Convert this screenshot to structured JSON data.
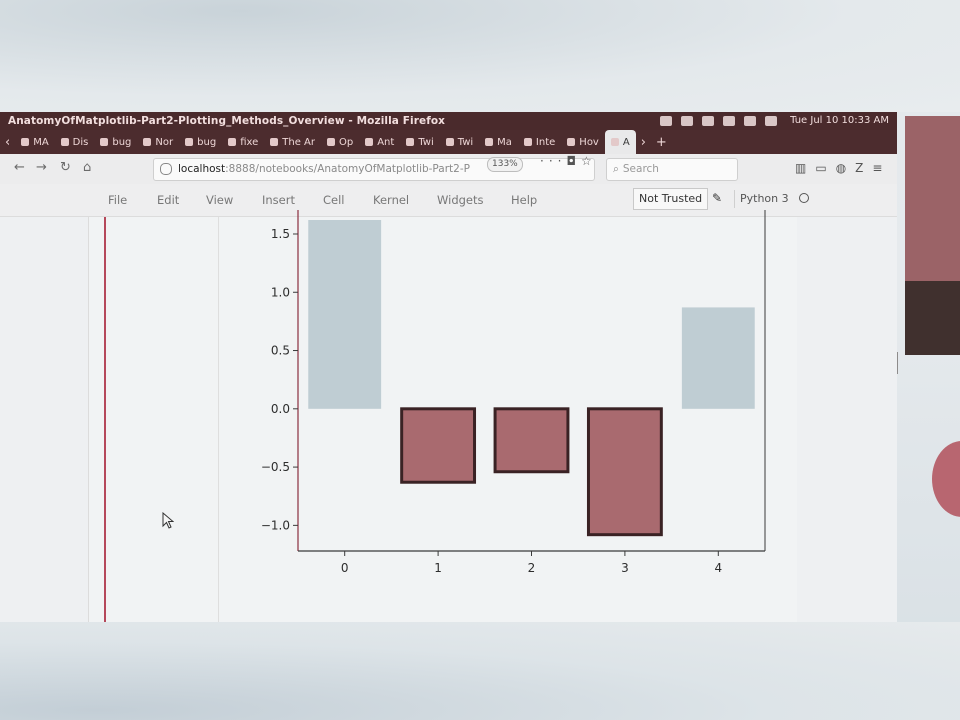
{
  "window": {
    "title": "AnatomyOfMatplotlib-Part2-Plotting_Methods_Overview - Mozilla Firefox",
    "clock": "Tue Jul 10 10:33 AM"
  },
  "tabs": [
    {
      "label": "MA"
    },
    {
      "label": "Dis"
    },
    {
      "label": "bug"
    },
    {
      "label": "Nor"
    },
    {
      "label": "bug"
    },
    {
      "label": "fixe"
    },
    {
      "label": "The Ar"
    },
    {
      "label": "Op"
    },
    {
      "label": "Ant"
    },
    {
      "label": "Twi"
    },
    {
      "label": "Twi"
    },
    {
      "label": "Ma"
    },
    {
      "label": "Inte"
    },
    {
      "label": "Hov"
    },
    {
      "label": "A"
    }
  ],
  "address": {
    "host": "localhost",
    "path": ":8888/notebooks/AnatomyOfMatplotlib-Part2-P",
    "zoom": "133%",
    "search_placeholder": "Search"
  },
  "jupyter": {
    "menu": [
      "File",
      "Edit",
      "View",
      "Insert",
      "Cell",
      "Kernel",
      "Widgets",
      "Help"
    ],
    "trusted": "Not Trusted",
    "kernel": "Python 3"
  },
  "chart_data": {
    "type": "bar",
    "categories": [
      "0",
      "1",
      "2",
      "3",
      "4"
    ],
    "values": [
      1.62,
      -0.63,
      -0.54,
      -1.08,
      0.87
    ],
    "x_ticks": [
      "0",
      "1",
      "2",
      "3",
      "4"
    ],
    "y_ticks": [
      "1.5",
      "1.0",
      "0.5",
      "0.0",
      "−0.5",
      "−1.0"
    ],
    "y_tick_values": [
      1.5,
      1.0,
      0.5,
      0.0,
      -0.5,
      -1.0
    ],
    "ylim": [
      -1.22,
      1.62
    ],
    "colors": {
      "positive": "#bfcdd3",
      "negative": "#a96a6f",
      "negative_edge": "#3a2224",
      "axis": "#8a2f3f"
    }
  }
}
